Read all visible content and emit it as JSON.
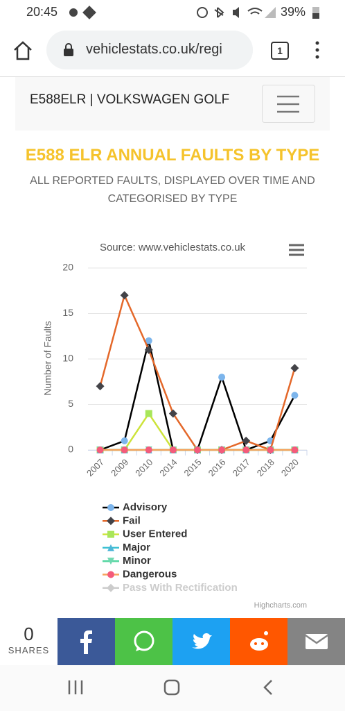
{
  "status_bar": {
    "time": "20:45",
    "battery": "39%"
  },
  "browser": {
    "url": "vehiclestats.co.uk/regi",
    "tab_count": 1
  },
  "site_header": {
    "title": "E588ELR | VOLKSWAGEN GOLF"
  },
  "heading": {
    "title": "E588 ELR ANNUAL FAULTS BY TYPE",
    "subtitle_lines": [
      "ALL REPORTED FAULTS, DISPLAYED OVER TIME AND",
      "CATEGORISED BY TYPE"
    ]
  },
  "chart_data": {
    "type": "line",
    "subtitle": "Source: www.vehiclestats.co.uk",
    "y_label": "Number of Faults",
    "credits": "Highcharts.com",
    "categories": [
      "2007",
      "2009",
      "2010",
      "2014",
      "2015",
      "2016",
      "2017",
      "2018",
      "2020"
    ],
    "ylim": [
      0,
      20
    ],
    "yticks": [
      0,
      5,
      10,
      15,
      20
    ],
    "grid": true,
    "legend": "bottom",
    "series": [
      {
        "name": "Advisory",
        "color": "#000000",
        "marker": "circle",
        "marker_color": "#7cb5ec",
        "values": [
          0,
          1,
          12,
          0,
          0,
          8,
          0,
          1,
          6
        ]
      },
      {
        "name": "Fail",
        "color": "#e4682a",
        "marker": "diamond",
        "marker_color": "#434348",
        "values": [
          7,
          17,
          11,
          4,
          0,
          0,
          1,
          0,
          9
        ]
      },
      {
        "name": "User Entered",
        "color": "#cde33a",
        "marker": "square",
        "marker_color": "#a8e65a",
        "values": [
          0,
          0,
          4,
          0,
          0,
          0,
          0,
          0,
          0
        ]
      },
      {
        "name": "Major",
        "color": "#3ec1d3",
        "marker": "triangle",
        "marker_color": "#4fb7d8",
        "values": [
          0,
          0,
          0,
          0,
          0,
          0,
          0,
          0,
          0
        ]
      },
      {
        "name": "Minor",
        "color": "#52d6a0",
        "marker": "triangle-down",
        "marker_color": "#6fd8b0",
        "values": [
          0,
          0,
          0,
          0,
          0,
          0,
          0,
          0,
          0
        ]
      },
      {
        "name": "Dangerous",
        "color": "#f7a35c",
        "marker": "circle",
        "marker_color": "#f45b7b",
        "values": [
          0,
          0,
          0,
          0,
          0,
          0,
          0,
          0,
          0
        ]
      },
      {
        "name": "Pass With Rectification",
        "color": "#cccccc",
        "marker": "diamond",
        "marker_color": "#cccccc",
        "visible": false
      }
    ]
  },
  "share_bar": {
    "count": 0,
    "label": "SHARES"
  }
}
